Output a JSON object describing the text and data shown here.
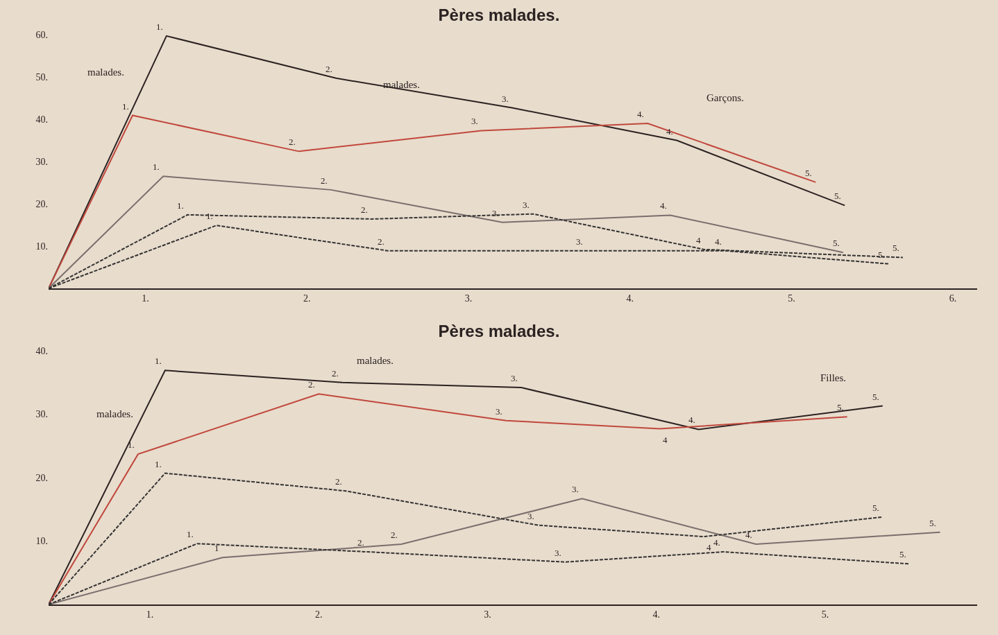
{
  "chart_data": [
    {
      "type": "line",
      "title": "Pères malades.",
      "xlim": [
        0.4,
        6.15
      ],
      "xticks": [
        {
          "value": 1,
          "label": "1."
        },
        {
          "value": 2,
          "label": "2."
        },
        {
          "value": 3,
          "label": "3."
        },
        {
          "value": 4,
          "label": "4."
        },
        {
          "value": 5,
          "label": "5."
        },
        {
          "value": 6,
          "label": "6."
        }
      ],
      "ylim": [
        0,
        60
      ],
      "yticks": [
        {
          "value": 10,
          "label": "10."
        },
        {
          "value": 20,
          "label": "20."
        },
        {
          "value": 30,
          "label": "30."
        },
        {
          "value": 40,
          "label": "40."
        },
        {
          "value": 50,
          "label": "50."
        },
        {
          "value": 60,
          "label": "60."
        }
      ],
      "grid": false,
      "series": [
        {
          "color": "#2b2222",
          "line_style": "solid",
          "x": [
            0.4,
            1.13,
            2.18,
            3.27,
            4.29,
            5.33
          ],
          "values": [
            0,
            59.7,
            49.7,
            42.7,
            35.0,
            19.6
          ]
        },
        {
          "color": "#c0473c",
          "line_style": "solid",
          "x": [
            0.4,
            0.92,
            1.95,
            3.08,
            4.11,
            5.15
          ],
          "values": [
            0,
            40.9,
            32.4,
            37.3,
            39.0,
            25.1
          ]
        },
        {
          "color": "#7a6e6e",
          "line_style": "solid",
          "x": [
            0.4,
            1.11,
            2.15,
            3.21,
            4.25,
            5.32
          ],
          "values": [
            0,
            26.5,
            23.3,
            15.6,
            17.3,
            8.5
          ]
        },
        {
          "color": "#333333",
          "line_style": "dashed",
          "x": [
            0.4,
            1.26,
            2.4,
            3.4,
            4.46,
            5.69
          ],
          "values": [
            0,
            17.4,
            16.4,
            17.6,
            9.2,
            7.3
          ]
        },
        {
          "color": "#333333",
          "line_style": "dashed",
          "x": [
            0.4,
            1.44,
            2.5,
            3.73,
            4.59,
            5.6
          ],
          "values": [
            0,
            14.9,
            8.9,
            8.9,
            8.9,
            5.8
          ]
        }
      ],
      "annotations": [
        "malades.",
        "malades.",
        "Garçons.",
        {
          "text": "1.",
          "x": 1.13,
          "y": 59.7
        },
        {
          "text": "2.",
          "x": 2.18,
          "y": 49.7
        },
        {
          "text": "3.",
          "x": 3.27,
          "y": 42.7
        },
        {
          "text": "4.",
          "x": 4.29,
          "y": 35.0
        },
        {
          "text": "5.",
          "x": 5.33,
          "y": 19.6
        },
        {
          "text": "1.",
          "x": 0.92,
          "y": 40.9
        },
        {
          "text": "2.",
          "x": 1.95,
          "y": 32.4
        },
        {
          "text": "3.",
          "x": 3.08,
          "y": 37.3
        },
        {
          "text": "4.",
          "x": 4.11,
          "y": 39.0
        },
        {
          "text": "5.",
          "x": 5.15,
          "y": 25.1
        },
        {
          "text": "1.",
          "x": 1.11,
          "y": 26.5
        },
        {
          "text": "2.",
          "x": 2.15,
          "y": 23.3
        },
        {
          "text": "3.",
          "x": 3.21,
          "y": 15.6
        },
        {
          "text": "4.",
          "x": 4.25,
          "y": 17.3
        },
        {
          "text": "5.",
          "x": 5.32,
          "y": 8.5
        },
        {
          "text": "1.",
          "x": 1.26,
          "y": 17.4
        },
        {
          "text": "2.",
          "x": 2.4,
          "y": 16.4
        },
        {
          "text": "3.",
          "x": 3.4,
          "y": 17.6
        },
        {
          "text": "4",
          "x": 4.46,
          "y": 9.2
        },
        {
          "text": "5.",
          "x": 5.69,
          "y": 7.3
        },
        {
          "text": "1.",
          "x": 1.44,
          "y": 14.9
        },
        {
          "text": "2.",
          "x": 2.5,
          "y": 8.9
        },
        {
          "text": "3.",
          "x": 3.73,
          "y": 8.9
        },
        {
          "text": "4.",
          "x": 4.59,
          "y": 8.9
        },
        {
          "text": "5.",
          "x": 5.6,
          "y": 5.8
        }
      ]
    },
    {
      "type": "line",
      "title": "Pères malades.",
      "xlim": [
        0.4,
        5.9
      ],
      "xticks": [
        {
          "value": 1,
          "label": "1."
        },
        {
          "value": 2,
          "label": "2."
        },
        {
          "value": 3,
          "label": "3."
        },
        {
          "value": 4,
          "label": "4."
        },
        {
          "value": 5,
          "label": "5."
        }
      ],
      "ylim": [
        0,
        40
      ],
      "yticks": [
        {
          "value": 10,
          "label": "10."
        },
        {
          "value": 20,
          "label": "20."
        },
        {
          "value": 30,
          "label": "30."
        },
        {
          "value": 40,
          "label": "40."
        }
      ],
      "grid": false,
      "series": [
        {
          "color": "#2b2222",
          "line_style": "solid",
          "x": [
            0.4,
            1.09,
            2.14,
            3.2,
            4.25,
            5.34
          ],
          "values": [
            0,
            36.9,
            35.0,
            34.2,
            27.6,
            31.3
          ]
        },
        {
          "color": "#c0473c",
          "line_style": "solid",
          "x": [
            0.4,
            0.93,
            2.0,
            3.11,
            4.02,
            5.13
          ],
          "values": [
            0,
            23.7,
            33.2,
            29.0,
            27.7,
            29.6
          ]
        },
        {
          "color": "#7a6e6e",
          "line_style": "solid",
          "x": [
            0.4,
            1.43,
            2.49,
            3.56,
            4.59,
            5.68
          ],
          "values": [
            0,
            7.4,
            9.5,
            16.7,
            9.5,
            11.4
          ]
        },
        {
          "color": "#333333",
          "line_style": "dashed",
          "x": [
            0.4,
            1.28,
            2.29,
            3.46,
            4.4,
            5.5
          ],
          "values": [
            0,
            9.6,
            8.3,
            6.7,
            8.3,
            6.4
          ]
        },
        {
          "color": "#333333",
          "line_style": "dashed",
          "x": [
            0.4,
            1.09,
            2.16,
            3.3,
            4.28,
            5.34
          ],
          "values": [
            0,
            20.7,
            17.9,
            12.5,
            10.7,
            13.8
          ]
        }
      ],
      "annotations": [
        "malades.",
        "malades.",
        "Filles.",
        {
          "text": "1.",
          "x": 1.09,
          "y": 36.9
        },
        {
          "text": "2.",
          "x": 2.14,
          "y": 35.0
        },
        {
          "text": "3.",
          "x": 3.2,
          "y": 34.2
        },
        {
          "text": "4.",
          "x": 4.25,
          "y": 27.6
        },
        {
          "text": "5.",
          "x": 5.34,
          "y": 31.3
        },
        {
          "text": "1.",
          "x": 0.93,
          "y": 23.7
        },
        {
          "text": "2.",
          "x": 2.0,
          "y": 33.2
        },
        {
          "text": "3.",
          "x": 3.11,
          "y": 29.0
        },
        {
          "text": "4",
          "x": 4.02,
          "y": 27.7
        },
        {
          "text": "5.",
          "x": 5.13,
          "y": 29.6
        },
        {
          "text": "1",
          "x": 1.43,
          "y": 7.4
        },
        {
          "text": "2.",
          "x": 2.49,
          "y": 9.5
        },
        {
          "text": "3.",
          "x": 3.56,
          "y": 16.7
        },
        {
          "text": "4.",
          "x": 4.59,
          "y": 9.5
        },
        {
          "text": "5.",
          "x": 5.68,
          "y": 11.4
        },
        {
          "text": "1.",
          "x": 1.28,
          "y": 9.6
        },
        {
          "text": "2.",
          "x": 2.29,
          "y": 8.3
        },
        {
          "text": "3.",
          "x": 3.46,
          "y": 6.7
        },
        {
          "text": "4.",
          "x": 4.4,
          "y": 8.3
        },
        {
          "text": "5.",
          "x": 5.5,
          "y": 6.4
        },
        {
          "text": "1.",
          "x": 1.09,
          "y": 20.7
        },
        {
          "text": "2.",
          "x": 2.16,
          "y": 17.9
        },
        {
          "text": "3.",
          "x": 3.3,
          "y": 12.5
        },
        {
          "text": "4",
          "x": 4.28,
          "y": 10.7
        },
        {
          "text": "5.",
          "x": 5.34,
          "y": 13.8
        }
      ]
    }
  ]
}
